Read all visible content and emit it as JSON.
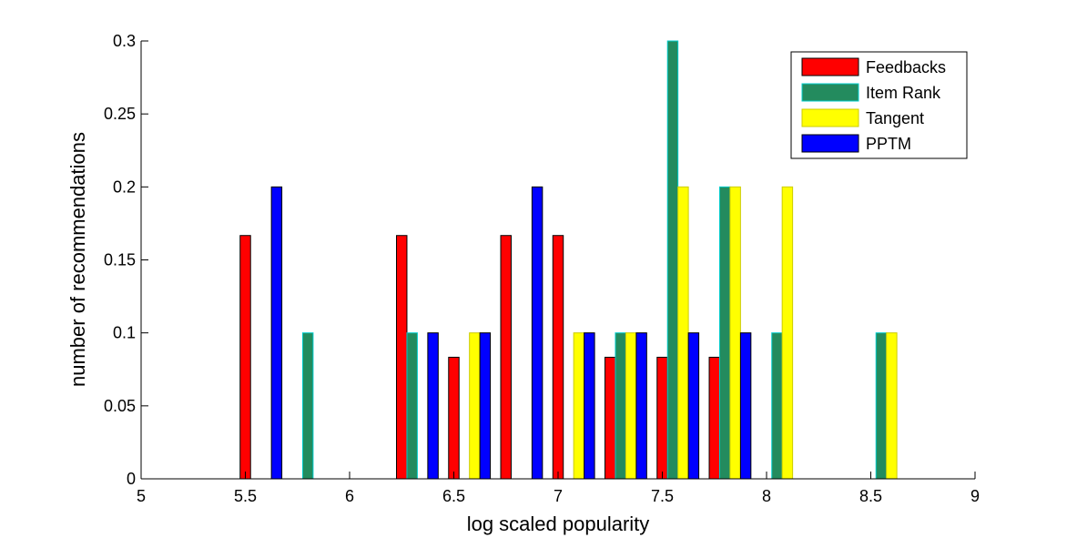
{
  "chart_data": {
    "type": "bar",
    "xlabel": "log scaled popularity",
    "ylabel": "number of recommendations",
    "xlim": [
      5,
      9
    ],
    "ylim": [
      0,
      0.3
    ],
    "xticks": [
      "5",
      "5.5",
      "6",
      "6.5",
      "7",
      "7.5",
      "8",
      "8.5",
      "9"
    ],
    "yticks": [
      "0",
      "0.05",
      "0.1",
      "0.15",
      "0.2",
      "0.25",
      "0.3"
    ],
    "bin_centers": [
      5.125,
      5.375,
      5.625,
      5.875,
      6.125,
      6.375,
      6.625,
      6.875,
      7.125,
      7.375,
      7.625,
      7.875,
      8.125,
      8.375,
      8.625,
      8.875
    ],
    "legend_position": "top-right",
    "series": [
      {
        "name": "Feedbacks",
        "color": "#ff0000",
        "edge": "#000000",
        "values": [
          0,
          0,
          0.1667,
          0,
          0,
          0.1667,
          0.0833,
          0.1667,
          0.1667,
          0.0833,
          0.0833,
          0.0833,
          0,
          0,
          0,
          0
        ]
      },
      {
        "name": "Item Rank",
        "color": "#238b5e",
        "edge": "#00cccc",
        "values": [
          0,
          0,
          0,
          0.1,
          0,
          0.1,
          0,
          0,
          0,
          0.1,
          0.3,
          0.2,
          0.1,
          0,
          0.1,
          0
        ]
      },
      {
        "name": "Tangent",
        "color": "#ffff00",
        "edge": "#cccc00",
        "values": [
          0,
          0,
          0,
          0,
          0,
          0,
          0.1,
          0,
          0.1,
          0.1,
          0.2,
          0.2,
          0.2,
          0,
          0.1,
          0
        ]
      },
      {
        "name": "PPTM",
        "color": "#0000ff",
        "edge": "#000000",
        "values": [
          0,
          0,
          0.2,
          0,
          0,
          0.1,
          0.1,
          0.2,
          0.1,
          0.1,
          0.1,
          0.1,
          0,
          0,
          0,
          0
        ]
      }
    ]
  }
}
